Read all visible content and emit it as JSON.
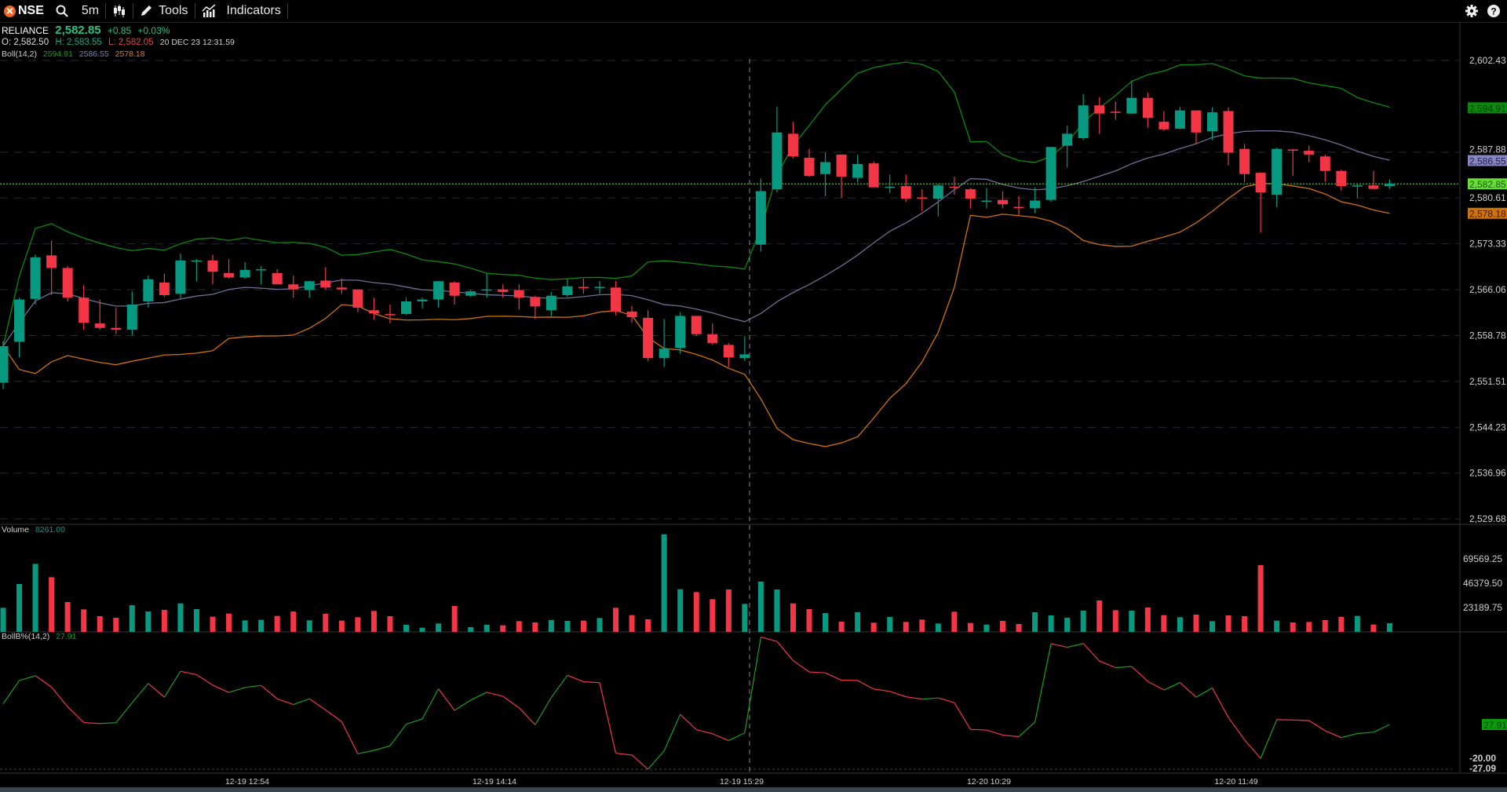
{
  "toolbar": {
    "exchange": "NSE",
    "interval": "5m",
    "tools_label": "Tools",
    "indicators_label": "Indicators"
  },
  "quote": {
    "symbol": "RELIANCE",
    "last": "2,582.85",
    "change": "+0.85",
    "change_pct": "+0.03%",
    "open": "O: 2,582.50",
    "high": "H: 2,583.55",
    "low": "L: 2,582.05",
    "timestamp": "20 DEC 23 12:31.59"
  },
  "boll": {
    "label": "Boll(14,2)",
    "upper": "2594.91",
    "middle": "2586.55",
    "lower": "2578.18"
  },
  "volume_legend": {
    "label": "Volume",
    "value": "8261.00"
  },
  "bollb_legend": {
    "label": "BollB%(14,2)",
    "value": "27.91"
  },
  "colors": {
    "up": "#089981",
    "down": "#f23645",
    "upper_band": "#0a8a0a",
    "middle_band": "#6e6e96",
    "lower_band": "#d0720a",
    "last_price": "#66dd33",
    "bollb_up": "#1aa01a",
    "bollb_down": "#f23645"
  },
  "icons": [
    "nse-logo",
    "search-icon",
    "candlestick-icon",
    "pencil-icon",
    "indicators-icon",
    "gear-icon",
    "help-icon"
  ],
  "chart_data": {
    "type": "candlestick",
    "price_axis_ticks": [
      "2,602.43",
      "2,587.88",
      "2,580.61",
      "2,573.33",
      "2,566.06",
      "2,558.78",
      "2,551.51",
      "2,544.23",
      "2,536.96",
      "2,529.68"
    ],
    "price_axis_tags": [
      {
        "text": "2,594.91",
        "value": 2594.91,
        "kind": "upper"
      },
      {
        "text": "2,586.55",
        "value": 2586.55,
        "kind": "middle"
      },
      {
        "text": "2,582.85",
        "value": 2582.85,
        "kind": "last"
      },
      {
        "text": "2,578.18",
        "value": 2578.18,
        "kind": "lower"
      }
    ],
    "volume_axis_ticks": [
      "69569.25",
      "46379.50",
      "23189.75"
    ],
    "bollb_axis_tag": "27.91",
    "bollb_axis_ticks": [
      "-20.00",
      "-27.09"
    ],
    "x_axis_labels": [
      "12-19 12:54",
      "12-19 14:14",
      "12-19 15:29",
      "12-20 10:29",
      "12-20 11:49"
    ],
    "ohlc": [
      [
        2551.3,
        2557.9,
        2550.3,
        2557.1
      ],
      [
        2557.8,
        2564.8,
        2555.3,
        2564.5
      ],
      [
        2564.6,
        2571.6,
        2563.7,
        2571.2
      ],
      [
        2571.5,
        2573.8,
        2565.2,
        2569.5
      ],
      [
        2569.5,
        2569.8,
        2564.2,
        2564.8
      ],
      [
        2564.8,
        2566.8,
        2559.7,
        2560.8
      ],
      [
        2560.7,
        2564.5,
        2559.7,
        2560.0
      ],
      [
        2560.0,
        2563.2,
        2559.0,
        2559.7
      ],
      [
        2559.7,
        2565.8,
        2558.8,
        2563.7
      ],
      [
        2564.2,
        2568.3,
        2563.2,
        2567.7
      ],
      [
        2567.2,
        2568.6,
        2564.9,
        2565.2
      ],
      [
        2565.4,
        2571.8,
        2564.6,
        2570.7
      ],
      [
        2570.6,
        2570.9,
        2567.4,
        2570.7
      ],
      [
        2570.7,
        2571.6,
        2566.9,
        2568.9
      ],
      [
        2568.7,
        2570.9,
        2567.8,
        2568.0
      ],
      [
        2568.0,
        2570.4,
        2567.8,
        2569.2
      ],
      [
        2569.2,
        2569.8,
        2566.9,
        2569.3
      ],
      [
        2568.7,
        2569.3,
        2566.9,
        2566.9
      ],
      [
        2566.9,
        2568.3,
        2564.8,
        2566.1
      ],
      [
        2566.0,
        2567.5,
        2564.8,
        2567.4
      ],
      [
        2567.5,
        2569.6,
        2566.0,
        2566.4
      ],
      [
        2566.4,
        2567.8,
        2565.4,
        2566.1
      ],
      [
        2566.1,
        2566.1,
        2562.5,
        2563.2
      ],
      [
        2562.8,
        2564.8,
        2561.3,
        2562.3
      ],
      [
        2562.2,
        2563.7,
        2560.7,
        2562.0
      ],
      [
        2562.2,
        2564.8,
        2562.0,
        2564.2
      ],
      [
        2564.2,
        2564.8,
        2563.1,
        2564.5
      ],
      [
        2564.5,
        2567.4,
        2563.2,
        2567.4
      ],
      [
        2567.2,
        2567.4,
        2563.7,
        2565.1
      ],
      [
        2565.1,
        2566.0,
        2564.9,
        2565.8
      ],
      [
        2566.0,
        2568.7,
        2564.8,
        2566.1
      ],
      [
        2566.1,
        2566.9,
        2564.8,
        2565.7
      ],
      [
        2566.0,
        2566.9,
        2562.9,
        2564.8
      ],
      [
        2564.9,
        2565.1,
        2561.4,
        2563.4
      ],
      [
        2562.8,
        2565.7,
        2561.9,
        2565.1
      ],
      [
        2565.2,
        2567.8,
        2564.9,
        2566.6
      ],
      [
        2566.5,
        2567.8,
        2565.4,
        2566.4
      ],
      [
        2566.4,
        2567.4,
        2565.4,
        2566.5
      ],
      [
        2566.4,
        2567.4,
        2562.0,
        2562.6
      ],
      [
        2562.6,
        2563.5,
        2560.8,
        2561.7
      ],
      [
        2561.6,
        2562.8,
        2554.7,
        2555.2
      ],
      [
        2555.2,
        2561.4,
        2553.8,
        2556.7
      ],
      [
        2556.8,
        2562.5,
        2555.9,
        2561.9
      ],
      [
        2561.9,
        2561.9,
        2558.7,
        2559.0
      ],
      [
        2559.0,
        2560.7,
        2557.3,
        2557.6
      ],
      [
        2557.3,
        2557.6,
        2553.8,
        2555.3
      ],
      [
        2555.2,
        2558.7,
        2554.7,
        2555.8
      ],
      [
        2573.2,
        2583.7,
        2572.1,
        2581.7
      ],
      [
        2582.0,
        2595.1,
        2581.5,
        2591.0
      ],
      [
        2590.8,
        2592.7,
        2586.9,
        2587.2
      ],
      [
        2587.0,
        2588.4,
        2584.0,
        2584.1
      ],
      [
        2584.4,
        2587.8,
        2580.9,
        2586.3
      ],
      [
        2587.5,
        2587.5,
        2580.6,
        2584.0
      ],
      [
        2583.8,
        2587.5,
        2583.1,
        2586.0
      ],
      [
        2586.1,
        2586.4,
        2582.3,
        2582.3
      ],
      [
        2582.3,
        2584.3,
        2581.4,
        2582.4
      ],
      [
        2582.5,
        2584.3,
        2580.0,
        2580.5
      ],
      [
        2580.7,
        2582.0,
        2578.5,
        2580.6
      ],
      [
        2580.5,
        2582.8,
        2577.7,
        2582.6
      ],
      [
        2582.4,
        2584.0,
        2581.1,
        2582.3
      ],
      [
        2582.0,
        2582.2,
        2579.0,
        2580.5
      ],
      [
        2580.1,
        2582.2,
        2579.0,
        2580.2
      ],
      [
        2580.3,
        2581.7,
        2579.0,
        2579.6
      ],
      [
        2579.2,
        2580.9,
        2577.9,
        2579.1
      ],
      [
        2579.0,
        2582.3,
        2578.2,
        2580.2
      ],
      [
        2580.3,
        2588.7,
        2580.0,
        2588.7
      ],
      [
        2588.9,
        2592.1,
        2585.4,
        2590.8
      ],
      [
        2590.1,
        2597.1,
        2589.8,
        2595.3
      ],
      [
        2595.3,
        2596.6,
        2590.8,
        2594.0
      ],
      [
        2594.3,
        2595.9,
        2593.0,
        2594.2
      ],
      [
        2594.0,
        2599.2,
        2594.0,
        2596.5
      ],
      [
        2596.5,
        2597.3,
        2591.8,
        2593.3
      ],
      [
        2592.7,
        2594.4,
        2591.3,
        2591.5
      ],
      [
        2591.6,
        2595.1,
        2591.5,
        2594.5
      ],
      [
        2594.5,
        2594.5,
        2589.2,
        2591.0
      ],
      [
        2591.2,
        2595.0,
        2589.8,
        2594.2
      ],
      [
        2594.4,
        2595.0,
        2585.8,
        2587.8
      ],
      [
        2588.4,
        2589.2,
        2583.1,
        2584.4
      ],
      [
        2584.6,
        2584.7,
        2575.1,
        2581.5
      ],
      [
        2581.1,
        2588.6,
        2579.1,
        2588.4
      ],
      [
        2588.3,
        2588.4,
        2584.1,
        2588.1
      ],
      [
        2588.1,
        2588.9,
        2586.3,
        2587.5
      ],
      [
        2587.2,
        2587.5,
        2583.2,
        2584.9
      ],
      [
        2584.9,
        2585.1,
        2581.8,
        2582.5
      ],
      [
        2582.5,
        2582.8,
        2580.6,
        2582.6
      ],
      [
        2582.6,
        2584.9,
        2582.0,
        2582.05
      ],
      [
        2582.5,
        2583.55,
        2582.05,
        2582.85
      ]
    ],
    "volume": [
      22936,
      45622,
      64818,
      52104,
      28420,
      21440,
      14958,
      13462,
      25429,
      19445,
      20941,
      27174,
      21689,
      14459,
      17451,
      10969,
      11468,
      15207,
      19445,
      10969,
      17202,
      10720,
      13961,
      19944,
      14958,
      6731,
      3989,
      7978,
      24681,
      4487,
      6731,
      6233,
      10221,
      8975,
      11219,
      10471,
      10720,
      13213,
      22936,
      15955,
      11966,
      92989,
      40636,
      37894,
      31163,
      40387,
      26675,
      47866,
      40387,
      27174,
      21689,
      17950,
      9723,
      18698,
      8726,
      14210,
      9473,
      11717,
      7978,
      19196,
      8476,
      6980,
      10471,
      7479,
      18698,
      15706,
      13462,
      20193,
      29916,
      20692,
      20193,
      23185,
      15955,
      13961,
      16454,
      10221,
      15706,
      14958,
      63572,
      10720,
      8975,
      9473,
      11219,
      14210,
      15207,
      6980,
      8261
    ],
    "indicators": {
      "bollinger": {
        "period": 14,
        "stddev": 2
      },
      "bollb": {
        "period": 14,
        "stddev": 2
      }
    }
  }
}
